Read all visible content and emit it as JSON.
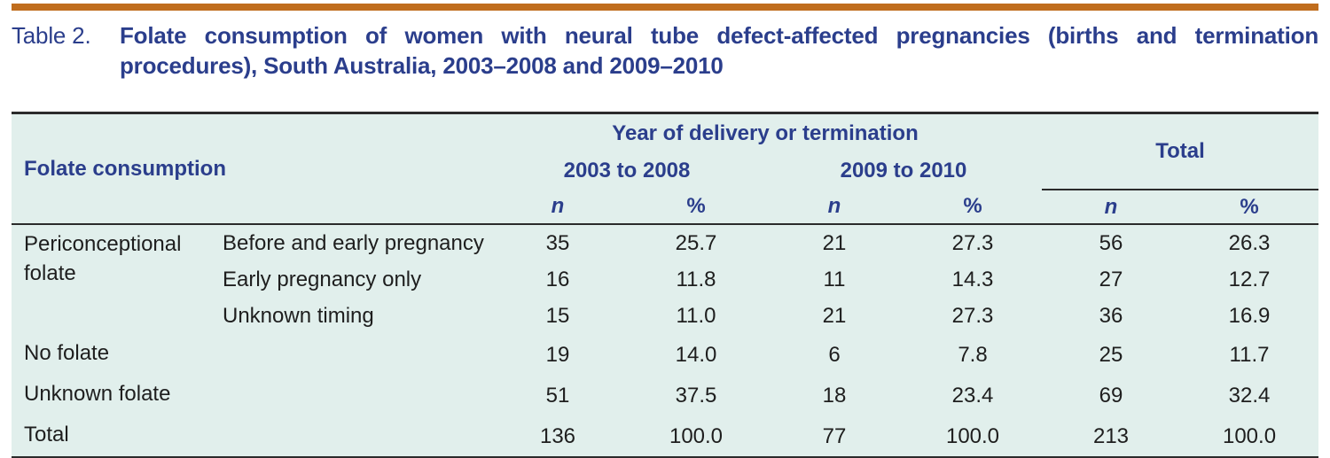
{
  "colors": {
    "accent_bar": "#c06d1d",
    "heading": "#2b3e8c",
    "table_bg": "#e1efec",
    "body_text": "#1e1e1e",
    "rule": "#2b2b2b"
  },
  "title": {
    "label": "Table 2.",
    "line1": "Folate consumption of women with neural tube defect-affected pregnancies (births and termination",
    "line2": "procedures), South Australia, 2003–2008 and 2009–2010"
  },
  "table": {
    "header": {
      "row_label": "Folate consumption",
      "year_group": "Year of delivery or termination",
      "period1": "2003 to 2008",
      "period2": "2009 to 2010",
      "total": "Total",
      "n": "n",
      "pct": "%"
    },
    "rows": [
      {
        "group": "Periconceptional folate",
        "label": "Before and early pregnancy",
        "n1": "35",
        "p1": "25.7",
        "n2": "21",
        "p2": "27.3",
        "nt": "56",
        "pt": "26.3"
      },
      {
        "group": "",
        "label": "Early pregnancy only",
        "n1": "16",
        "p1": "11.8",
        "n2": "11",
        "p2": "14.3",
        "nt": "27",
        "pt": "12.7"
      },
      {
        "group": "",
        "label": "Unknown timing",
        "n1": "15",
        "p1": "11.0",
        "n2": "21",
        "p2": "27.3",
        "nt": "36",
        "pt": "16.9"
      },
      {
        "group": "No folate",
        "label": "",
        "n1": "19",
        "p1": "14.0",
        "n2": "6",
        "p2": "7.8",
        "nt": "25",
        "pt": "11.7"
      },
      {
        "group": "Unknown folate",
        "label": "",
        "n1": "51",
        "p1": "37.5",
        "n2": "18",
        "p2": "23.4",
        "nt": "69",
        "pt": "32.4"
      },
      {
        "group": "Total",
        "label": "",
        "n1": "136",
        "p1": "100.0",
        "n2": "77",
        "p2": "100.0",
        "nt": "213",
        "pt": "100.0"
      }
    ]
  }
}
